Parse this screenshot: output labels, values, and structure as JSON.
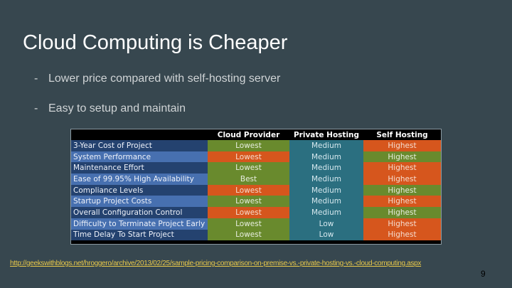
{
  "slide": {
    "title": "Cloud Computing is Cheaper",
    "bullets": [
      "Lower price compared with self-hosting server",
      "Easy to setup and maintain"
    ],
    "source_link": "http://geekswithblogs.net/hroggero/archive/2013/02/25/sample-pricing-comparison-on-premise-vs.-private-hosting-vs.-cloud-computing.aspx",
    "page_number": "9"
  },
  "colors": {
    "good": "#698a2d",
    "bad": "#d6561d",
    "neutral": "#2b6f80",
    "background": "#37474f",
    "link": "#e8c84a"
  },
  "table": {
    "headers": [
      "",
      "Cloud Provider",
      "Private Hosting",
      "Self Hosting"
    ],
    "rows": [
      {
        "label": "3-Year Cost of Project",
        "cells": [
          {
            "v": "Lowest",
            "c": "green"
          },
          {
            "v": "Medium",
            "c": "teal"
          },
          {
            "v": "Highest",
            "c": "orange"
          }
        ]
      },
      {
        "label": "System Performance",
        "cells": [
          {
            "v": "Lowest",
            "c": "orange"
          },
          {
            "v": "Medium",
            "c": "teal"
          },
          {
            "v": "Highest",
            "c": "green"
          }
        ]
      },
      {
        "label": "Maintenance Effort",
        "cells": [
          {
            "v": "Lowest",
            "c": "green"
          },
          {
            "v": "Medium",
            "c": "teal"
          },
          {
            "v": "Highest",
            "c": "orange"
          }
        ]
      },
      {
        "label": "Ease of 99.95% High Availability",
        "cells": [
          {
            "v": "Best",
            "c": "green"
          },
          {
            "v": "Medium",
            "c": "teal"
          },
          {
            "v": "Highest",
            "c": "orange"
          }
        ]
      },
      {
        "label": "Compliance Levels",
        "cells": [
          {
            "v": "Lowest",
            "c": "orange"
          },
          {
            "v": "Medium",
            "c": "teal"
          },
          {
            "v": "Highest",
            "c": "green"
          }
        ]
      },
      {
        "label": "Startup Project Costs",
        "cells": [
          {
            "v": "Lowest",
            "c": "green"
          },
          {
            "v": "Medium",
            "c": "teal"
          },
          {
            "v": "Highest",
            "c": "orange"
          }
        ]
      },
      {
        "label": "Overall Configuration Control",
        "cells": [
          {
            "v": "Lowest",
            "c": "orange"
          },
          {
            "v": "Medium",
            "c": "teal"
          },
          {
            "v": "Highest",
            "c": "green"
          }
        ]
      },
      {
        "label": "Difficulty to Terminate Project Early",
        "cells": [
          {
            "v": "Lowest",
            "c": "green"
          },
          {
            "v": "Low",
            "c": "teal"
          },
          {
            "v": "Highest",
            "c": "orange"
          }
        ]
      },
      {
        "label": "Time Delay To Start Project",
        "cells": [
          {
            "v": "Lowest",
            "c": "green"
          },
          {
            "v": "Low",
            "c": "teal"
          },
          {
            "v": "Highest",
            "c": "orange"
          }
        ]
      }
    ]
  }
}
